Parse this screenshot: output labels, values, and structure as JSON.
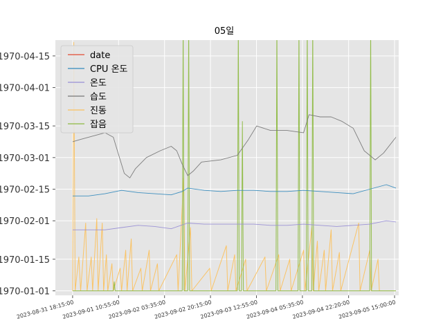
{
  "chart_data": {
    "type": "line",
    "title": "05일",
    "xlabel": "",
    "ylabel": "",
    "grid": true,
    "legend_position": "upper-left",
    "x_range": [
      "2023-08-31 12:00:00",
      "2023-09-05 16:30:00"
    ],
    "x_ticks": [
      "2023-08-31 18:15:00",
      "2023-09-01 10:55:00",
      "2023-09-02 03:35:00",
      "2023-09-02 20:15:00",
      "2023-09-03 12:55:00",
      "2023-09-04 05:35:00",
      "2023-09-04 22:20:00",
      "2023-09-05 15:00:00"
    ],
    "y_range_days": [
      -2,
      111
    ],
    "y_ticks": [
      {
        "label": "1970-01-01",
        "value": 0
      },
      {
        "label": "1970-01-15",
        "value": 14
      },
      {
        "label": "1970-02-01",
        "value": 31
      },
      {
        "label": "1970-02-15",
        "value": 45
      },
      {
        "label": "1970-03-01",
        "value": 59
      },
      {
        "label": "1970-03-15",
        "value": 73
      },
      {
        "label": "1970-04-01",
        "value": 90
      },
      {
        "label": "1970-04-15",
        "value": 104
      }
    ],
    "series": [
      {
        "name": "date",
        "color": "#e24a33",
        "points": []
      },
      {
        "name": "CPU 온도",
        "color": "#348abd",
        "points": [
          [
            "2023-08-31 18:15:00",
            42
          ],
          [
            "2023-09-01 00:00:00",
            42
          ],
          [
            "2023-09-01 06:00:00",
            43
          ],
          [
            "2023-09-01 12:00:00",
            44.5
          ],
          [
            "2023-09-01 18:00:00",
            43.5
          ],
          [
            "2023-09-02 00:00:00",
            43
          ],
          [
            "2023-09-02 06:00:00",
            42.5
          ],
          [
            "2023-09-02 10:00:00",
            44
          ],
          [
            "2023-09-02 12:00:00",
            45.5
          ],
          [
            "2023-09-02 18:00:00",
            44.5
          ],
          [
            "2023-09-03 00:00:00",
            44
          ],
          [
            "2023-09-03 06:00:00",
            44.5
          ],
          [
            "2023-09-03 12:00:00",
            44.5
          ],
          [
            "2023-09-03 18:00:00",
            44
          ],
          [
            "2023-09-04 00:00:00",
            44
          ],
          [
            "2023-09-04 06:00:00",
            44.5
          ],
          [
            "2023-09-04 12:00:00",
            44
          ],
          [
            "2023-09-04 18:00:00",
            43.5
          ],
          [
            "2023-09-05 00:00:00",
            43
          ],
          [
            "2023-09-05 06:00:00",
            45
          ],
          [
            "2023-09-05 12:00:00",
            47
          ],
          [
            "2023-09-05 15:30:00",
            45.5
          ]
        ]
      },
      {
        "name": "온도",
        "color": "#988ed5",
        "points": [
          [
            "2023-08-31 18:15:00",
            27
          ],
          [
            "2023-09-01 00:00:00",
            27
          ],
          [
            "2023-09-01 06:00:00",
            27
          ],
          [
            "2023-09-01 12:00:00",
            28
          ],
          [
            "2023-09-01 18:00:00",
            29
          ],
          [
            "2023-09-02 00:00:00",
            28.5
          ],
          [
            "2023-09-02 06:00:00",
            27.5
          ],
          [
            "2023-09-02 12:00:00",
            30
          ],
          [
            "2023-09-02 18:00:00",
            29.5
          ],
          [
            "2023-09-03 00:00:00",
            29.5
          ],
          [
            "2023-09-03 06:00:00",
            29.5
          ],
          [
            "2023-09-03 12:00:00",
            29.5
          ],
          [
            "2023-09-03 18:00:00",
            29
          ],
          [
            "2023-09-04 00:00:00",
            29
          ],
          [
            "2023-09-04 06:00:00",
            29.5
          ],
          [
            "2023-09-04 12:00:00",
            29
          ],
          [
            "2023-09-04 18:00:00",
            28.5
          ],
          [
            "2023-09-05 00:00:00",
            29
          ],
          [
            "2023-09-05 06:00:00",
            29.5
          ],
          [
            "2023-09-05 12:00:00",
            31
          ],
          [
            "2023-09-05 15:30:00",
            30.5
          ]
        ]
      },
      {
        "name": "습도",
        "color": "#777777",
        "points": [
          [
            "2023-08-31 18:15:00",
            66
          ],
          [
            "2023-08-31 21:00:00",
            67
          ],
          [
            "2023-09-01 00:00:00",
            68
          ],
          [
            "2023-09-01 06:00:00",
            70
          ],
          [
            "2023-09-01 09:00:00",
            68
          ],
          [
            "2023-09-01 11:00:00",
            60
          ],
          [
            "2023-09-01 13:00:00",
            52
          ],
          [
            "2023-09-01 15:00:00",
            50
          ],
          [
            "2023-09-01 17:00:00",
            54
          ],
          [
            "2023-09-01 21:00:00",
            59
          ],
          [
            "2023-09-02 02:00:00",
            62
          ],
          [
            "2023-09-02 06:00:00",
            64
          ],
          [
            "2023-09-02 08:00:00",
            62
          ],
          [
            "2023-09-02 10:00:00",
            56
          ],
          [
            "2023-09-02 12:00:00",
            51
          ],
          [
            "2023-09-02 14:00:00",
            53
          ],
          [
            "2023-09-02 17:00:00",
            57
          ],
          [
            "2023-09-03 00:00:00",
            58
          ],
          [
            "2023-09-03 06:00:00",
            60
          ],
          [
            "2023-09-03 10:00:00",
            67
          ],
          [
            "2023-09-03 13:00:00",
            73
          ],
          [
            "2023-09-03 18:00:00",
            71
          ],
          [
            "2023-09-04 00:00:00",
            71
          ],
          [
            "2023-09-04 06:00:00",
            70
          ],
          [
            "2023-09-04 08:00:00",
            78
          ],
          [
            "2023-09-04 12:00:00",
            77
          ],
          [
            "2023-09-04 16:00:00",
            77
          ],
          [
            "2023-09-04 20:00:00",
            75
          ],
          [
            "2023-09-05 00:00:00",
            72
          ],
          [
            "2023-09-05 04:00:00",
            62
          ],
          [
            "2023-09-05 08:00:00",
            58
          ],
          [
            "2023-09-05 11:00:00",
            61
          ],
          [
            "2023-09-05 15:30:00",
            68
          ]
        ]
      },
      {
        "name": "진동",
        "color": "#fbc15e",
        "points": [
          [
            "2023-08-31 18:15:00",
            0
          ],
          [
            "2023-08-31 18:40:00",
            110
          ],
          [
            "2023-08-31 19:10:00",
            0
          ],
          [
            "2023-08-31 20:30:00",
            15
          ],
          [
            "2023-08-31 21:10:00",
            0
          ],
          [
            "2023-08-31 23:00:00",
            30
          ],
          [
            "2023-08-31 23:30:00",
            0
          ],
          [
            "2023-09-01 01:00:00",
            15
          ],
          [
            "2023-09-01 01:30:00",
            0
          ],
          [
            "2023-09-01 03:00:00",
            32
          ],
          [
            "2023-09-01 03:30:00",
            0
          ],
          [
            "2023-09-01 05:00:00",
            30
          ],
          [
            "2023-09-01 05:30:00",
            0
          ],
          [
            "2023-09-01 06:30:00",
            16
          ],
          [
            "2023-09-01 07:00:00",
            0
          ],
          [
            "2023-09-01 08:30:00",
            12
          ],
          [
            "2023-09-01 09:00:00",
            0
          ],
          [
            "2023-09-01 11:30:00",
            10
          ],
          [
            "2023-09-01 12:00:00",
            0
          ],
          [
            "2023-09-01 13:30:00",
            18
          ],
          [
            "2023-09-01 14:00:00",
            0
          ],
          [
            "2023-09-01 15:30:00",
            23
          ],
          [
            "2023-09-01 16:00:00",
            0
          ],
          [
            "2023-09-01 19:00:00",
            10
          ],
          [
            "2023-09-01 19:30:00",
            0
          ],
          [
            "2023-09-01 22:00:00",
            18
          ],
          [
            "2023-09-01 22:30:00",
            0
          ],
          [
            "2023-09-02 01:00:00",
            12
          ],
          [
            "2023-09-02 01:30:00",
            0
          ],
          [
            "2023-09-02 08:00:00",
            16
          ],
          [
            "2023-09-02 08:30:00",
            0
          ],
          [
            "2023-09-02 10:30:00",
            50
          ],
          [
            "2023-09-02 11:00:00",
            0
          ],
          [
            "2023-09-02 13:00:00",
            28
          ],
          [
            "2023-09-02 13:30:00",
            0
          ],
          [
            "2023-09-02 20:00:00",
            10
          ],
          [
            "2023-09-02 20:30:00",
            0
          ],
          [
            "2023-09-03 02:00:00",
            20
          ],
          [
            "2023-09-03 02:30:00",
            0
          ],
          [
            "2023-09-03 05:00:00",
            16
          ],
          [
            "2023-09-03 05:30:00",
            0
          ],
          [
            "2023-09-03 09:00:00",
            14
          ],
          [
            "2023-09-03 09:30:00",
            0
          ],
          [
            "2023-09-03 16:00:00",
            15
          ],
          [
            "2023-09-03 16:30:00",
            0
          ],
          [
            "2023-09-03 21:00:00",
            16
          ],
          [
            "2023-09-03 21:30:00",
            0
          ],
          [
            "2023-09-04 01:00:00",
            14
          ],
          [
            "2023-09-04 01:30:00",
            0
          ],
          [
            "2023-09-04 06:00:00",
            18
          ],
          [
            "2023-09-04 06:30:00",
            0
          ],
          [
            "2023-09-04 09:00:00",
            28
          ],
          [
            "2023-09-04 09:30:00",
            0
          ],
          [
            "2023-09-04 11:00:00",
            22
          ],
          [
            "2023-09-04 11:30:00",
            0
          ],
          [
            "2023-09-04 13:30:00",
            18
          ],
          [
            "2023-09-04 14:00:00",
            0
          ],
          [
            "2023-09-04 16:00:00",
            27
          ],
          [
            "2023-09-04 16:30:00",
            0
          ],
          [
            "2023-09-04 19:00:00",
            17
          ],
          [
            "2023-09-04 19:30:00",
            0
          ],
          [
            "2023-09-05 02:00:00",
            30
          ],
          [
            "2023-09-05 02:30:00",
            0
          ],
          [
            "2023-09-05 06:00:00",
            18
          ],
          [
            "2023-09-05 06:30:00",
            0
          ],
          [
            "2023-09-05 09:00:00",
            14
          ],
          [
            "2023-09-05 09:30:00",
            0
          ],
          [
            "2023-09-05 15:30:00",
            0
          ]
        ]
      },
      {
        "name": "잡음",
        "color": "#8eba42",
        "points": [
          [
            "2023-08-31 18:15:00",
            0
          ],
          [
            "2023-09-01 09:00:00",
            0
          ],
          [
            "2023-09-01 09:20:00",
            4
          ],
          [
            "2023-09-01 09:40:00",
            0
          ],
          [
            "2023-09-02 10:00:00",
            0
          ],
          [
            "2023-09-02 10:20:00",
            120
          ],
          [
            "2023-09-02 10:40:00",
            0
          ],
          [
            "2023-09-02 12:00:00",
            0
          ],
          [
            "2023-09-02 12:20:00",
            120
          ],
          [
            "2023-09-02 12:40:00",
            0
          ],
          [
            "2023-09-03 06:00:00",
            0
          ],
          [
            "2023-09-03 06:20:00",
            120
          ],
          [
            "2023-09-03 06:40:00",
            0
          ],
          [
            "2023-09-03 07:30:00",
            0
          ],
          [
            "2023-09-03 07:50:00",
            75
          ],
          [
            "2023-09-03 08:10:00",
            0
          ],
          [
            "2023-09-03 20:00:00",
            0
          ],
          [
            "2023-09-03 20:20:00",
            120
          ],
          [
            "2023-09-03 20:40:00",
            0
          ],
          [
            "2023-09-04 04:00:00",
            0
          ],
          [
            "2023-09-04 04:20:00",
            120
          ],
          [
            "2023-09-04 04:40:00",
            0
          ],
          [
            "2023-09-04 07:00:00",
            0
          ],
          [
            "2023-09-04 07:20:00",
            120
          ],
          [
            "2023-09-04 07:40:00",
            0
          ],
          [
            "2023-09-04 09:00:00",
            0
          ],
          [
            "2023-09-04 09:20:00",
            120
          ],
          [
            "2023-09-04 09:40:00",
            0
          ],
          [
            "2023-09-05 06:00:00",
            0
          ],
          [
            "2023-09-05 06:20:00",
            120
          ],
          [
            "2023-09-05 06:40:00",
            0
          ],
          [
            "2023-09-05 15:30:00",
            0
          ]
        ]
      }
    ]
  }
}
